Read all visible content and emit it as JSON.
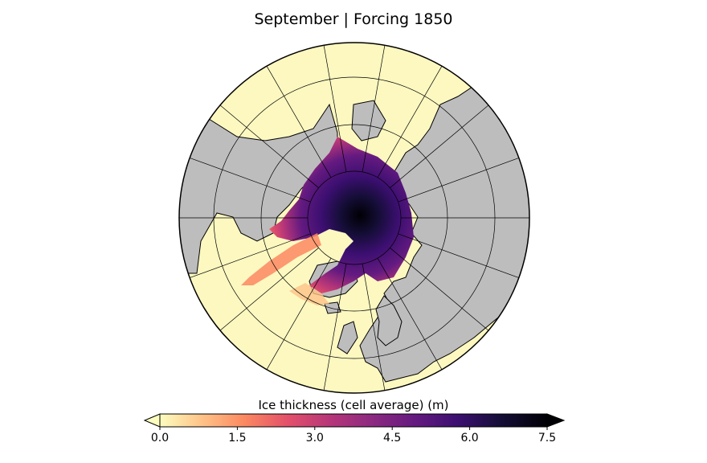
{
  "title": "September | Forcing 1850",
  "colorbar": {
    "label": "Ice thickness (cell average) (m)",
    "ticks": [
      "0.0",
      "1.5",
      "3.0",
      "4.5",
      "6.0",
      "7.5"
    ],
    "min": 0.0,
    "max": 7.5,
    "extend": "both",
    "colormap": "magma_r",
    "colors": [
      "#fcfdbf",
      "#fec287",
      "#fb8861",
      "#e3506a",
      "#b63679",
      "#8c2981",
      "#641a80",
      "#3b0f70",
      "#150e37",
      "#000004"
    ]
  },
  "map": {
    "projection": "north-polar-stereographic",
    "land_color": "#bdbdbd",
    "ocean_color": "#fcf8c0",
    "graticule_parallels_deg": [
      50,
      60,
      70,
      80
    ],
    "graticule_meridian_step_deg": 20
  }
}
